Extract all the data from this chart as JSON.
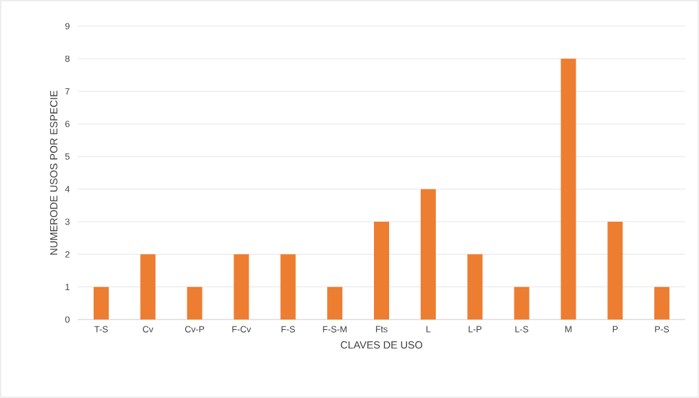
{
  "chart_data": {
    "type": "bar",
    "xlabel": "CLAVES DE USO",
    "ylabel": "NUMERODE USOS POR ESPECIE",
    "categories": [
      "T-S",
      "Cv",
      "Cv-P",
      "F-Cv",
      "F-S",
      "F-S-M",
      "Fts",
      "L",
      "L-P",
      "L-S",
      "M",
      "P",
      "P-S"
    ],
    "values": [
      1,
      2,
      1,
      2,
      2,
      1,
      3,
      4,
      2,
      1,
      8,
      3,
      1
    ],
    "color": "#ed7d31",
    "ylim": [
      0,
      9
    ],
    "yticks": [
      0,
      1,
      2,
      3,
      4,
      5,
      6,
      7,
      8,
      9
    ],
    "grid": "y"
  }
}
